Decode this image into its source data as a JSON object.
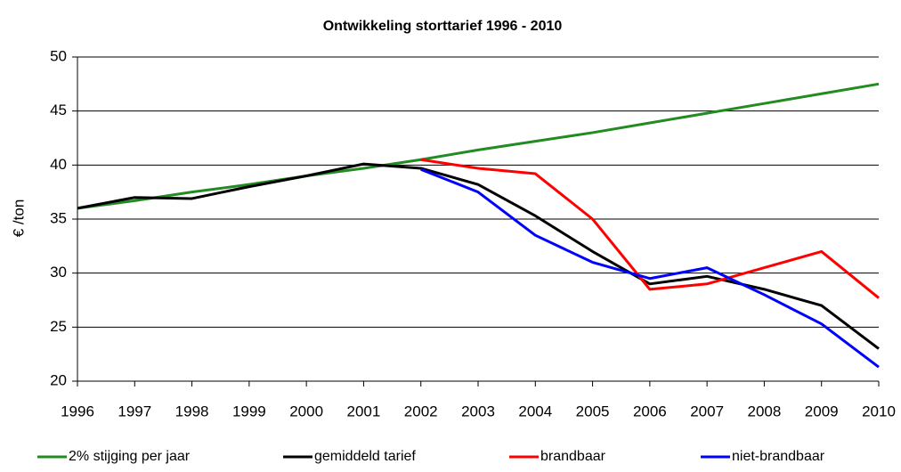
{
  "chart_data": {
    "type": "line",
    "title": "Ontwikkeling storttarief 1996 - 2010",
    "y_label": "€  /ton",
    "x": [
      1996,
      1997,
      1998,
      1999,
      2000,
      2001,
      2002,
      2003,
      2004,
      2005,
      2006,
      2007,
      2008,
      2009,
      2010
    ],
    "xlim": [
      1996,
      2010
    ],
    "xticks": [
      1996,
      1997,
      1998,
      1999,
      2000,
      2001,
      2002,
      2003,
      2004,
      2005,
      2006,
      2007,
      2008,
      2009,
      2010
    ],
    "ylim": [
      20,
      50
    ],
    "yticks": [
      20,
      25,
      30,
      35,
      40,
      45,
      50
    ],
    "grid": true,
    "legend": "bottom",
    "series": [
      {
        "name": "2% stijging per jaar",
        "color": "#228b22",
        "values": [
          36.0,
          36.7,
          37.5,
          38.2,
          39.0,
          39.7,
          40.5,
          41.4,
          42.2,
          43.0,
          43.9,
          44.8,
          45.7,
          46.6,
          47.5
        ]
      },
      {
        "name": "gemiddeld tarief",
        "color": "#000000",
        "values": [
          36.0,
          37.0,
          36.9,
          38.0,
          39.0,
          40.1,
          39.7,
          38.2,
          35.3,
          32.0,
          29.0,
          29.7,
          28.5,
          27.0,
          23.0
        ]
      },
      {
        "name": "brandbaar",
        "color": "#ff0000",
        "values": [
          null,
          null,
          null,
          null,
          null,
          null,
          40.5,
          39.7,
          39.2,
          35.0,
          28.5,
          29.0,
          30.5,
          32.0,
          27.7
        ]
      },
      {
        "name": "niet-brandbaar",
        "color": "#0000ff",
        "values": [
          null,
          null,
          null,
          null,
          null,
          null,
          39.6,
          37.5,
          33.5,
          31.0,
          29.5,
          30.5,
          28.0,
          25.3,
          21.3
        ]
      }
    ]
  }
}
